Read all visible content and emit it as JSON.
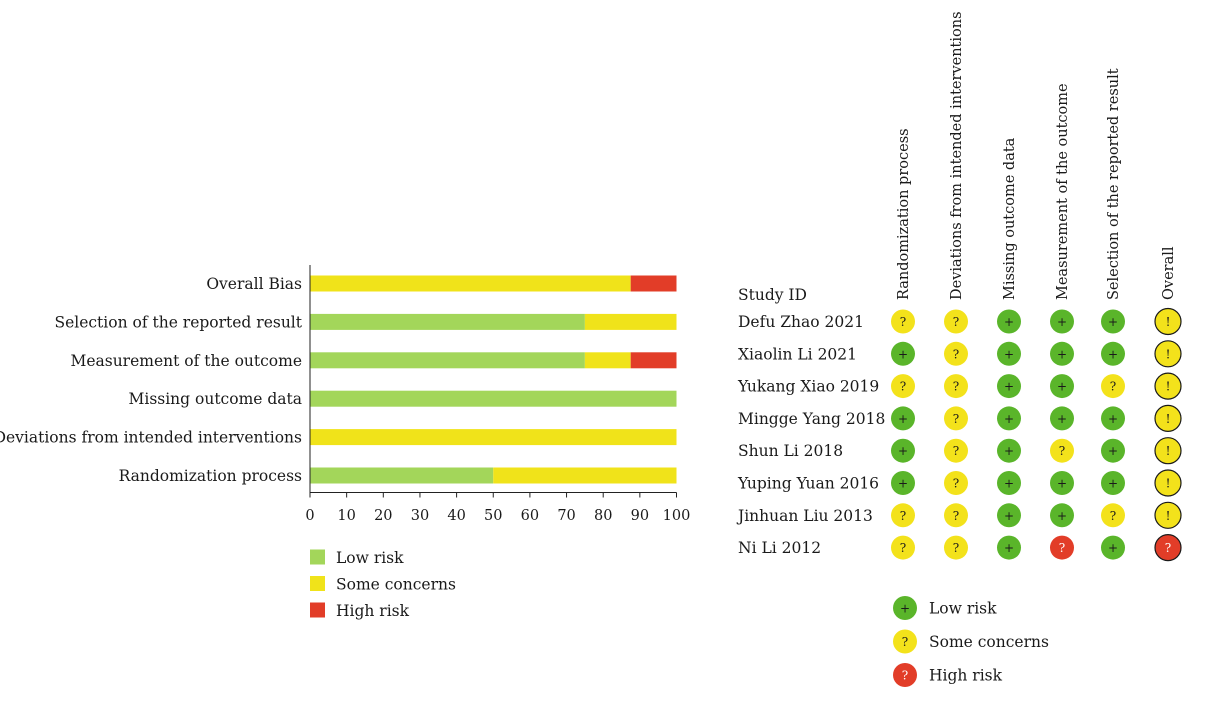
{
  "colors": {
    "low": "#a3d65a",
    "some": "#f0e31a",
    "high": "#e23d28",
    "dot_low": "#5ab52a",
    "dot_some": "#f3e21b",
    "dot_high": "#e23d28"
  },
  "chart_data": [
    {
      "type": "bar",
      "orientation": "horizontal",
      "stacked": true,
      "categories": [
        "Overall Bias",
        "Selection of the reported result",
        "Measurement of the outcome",
        "Missing outcome data",
        "Deviations from intended interventions",
        "Randomization process"
      ],
      "series": [
        {
          "name": "Low risk",
          "color_key": "low",
          "values": [
            0,
            75,
            75,
            100,
            0,
            50
          ]
        },
        {
          "name": "Some concerns",
          "color_key": "some",
          "values": [
            87.5,
            25,
            12.5,
            0,
            100,
            50
          ]
        },
        {
          "name": "High risk",
          "color_key": "high",
          "values": [
            12.5,
            0,
            12.5,
            0,
            0,
            0
          ]
        }
      ],
      "xlim": [
        0,
        100
      ],
      "xticks": [
        "0",
        "10",
        "20",
        "30",
        "40",
        "50",
        "60",
        "70",
        "80",
        "90",
        "100"
      ],
      "legend_position": "bottom-left",
      "grid": false
    },
    {
      "type": "table",
      "subtype": "traffic-light",
      "row_header": "Study ID",
      "columns": [
        "Randomization process",
        "Deviations from intended interventions",
        "Missing outcome data",
        "Measurement of the outcome",
        "Selection of the reported result",
        "Overall"
      ],
      "rows": [
        {
          "study": "Defu Zhao 2021",
          "judgements": [
            "some",
            "some",
            "low",
            "low",
            "low",
            "some"
          ]
        },
        {
          "study": "Xiaolin Li 2021",
          "judgements": [
            "low",
            "some",
            "low",
            "low",
            "low",
            "some"
          ]
        },
        {
          "study": "Yukang Xiao 2019",
          "judgements": [
            "some",
            "some",
            "low",
            "low",
            "some",
            "some"
          ]
        },
        {
          "study": "Mingge Yang 2018",
          "judgements": [
            "low",
            "some",
            "low",
            "low",
            "low",
            "some"
          ]
        },
        {
          "study": "Shun Li 2018",
          "judgements": [
            "low",
            "some",
            "low",
            "some",
            "low",
            "some"
          ]
        },
        {
          "study": "Yuping Yuan 2016",
          "judgements": [
            "low",
            "some",
            "low",
            "low",
            "low",
            "some"
          ]
        },
        {
          "study": "Jinhuan Liu 2013",
          "judgements": [
            "some",
            "some",
            "low",
            "low",
            "some",
            "some"
          ]
        },
        {
          "study": "Ni Li 2012",
          "judgements": [
            "some",
            "some",
            "low",
            "high",
            "low",
            "high"
          ]
        }
      ],
      "symbols": {
        "low": "+",
        "some": "?",
        "high": "?",
        "overall_some": "!"
      },
      "legend": [
        {
          "key": "low",
          "label": "Low risk"
        },
        {
          "key": "some",
          "label": "Some concerns"
        },
        {
          "key": "high",
          "label": "High risk"
        }
      ]
    }
  ]
}
